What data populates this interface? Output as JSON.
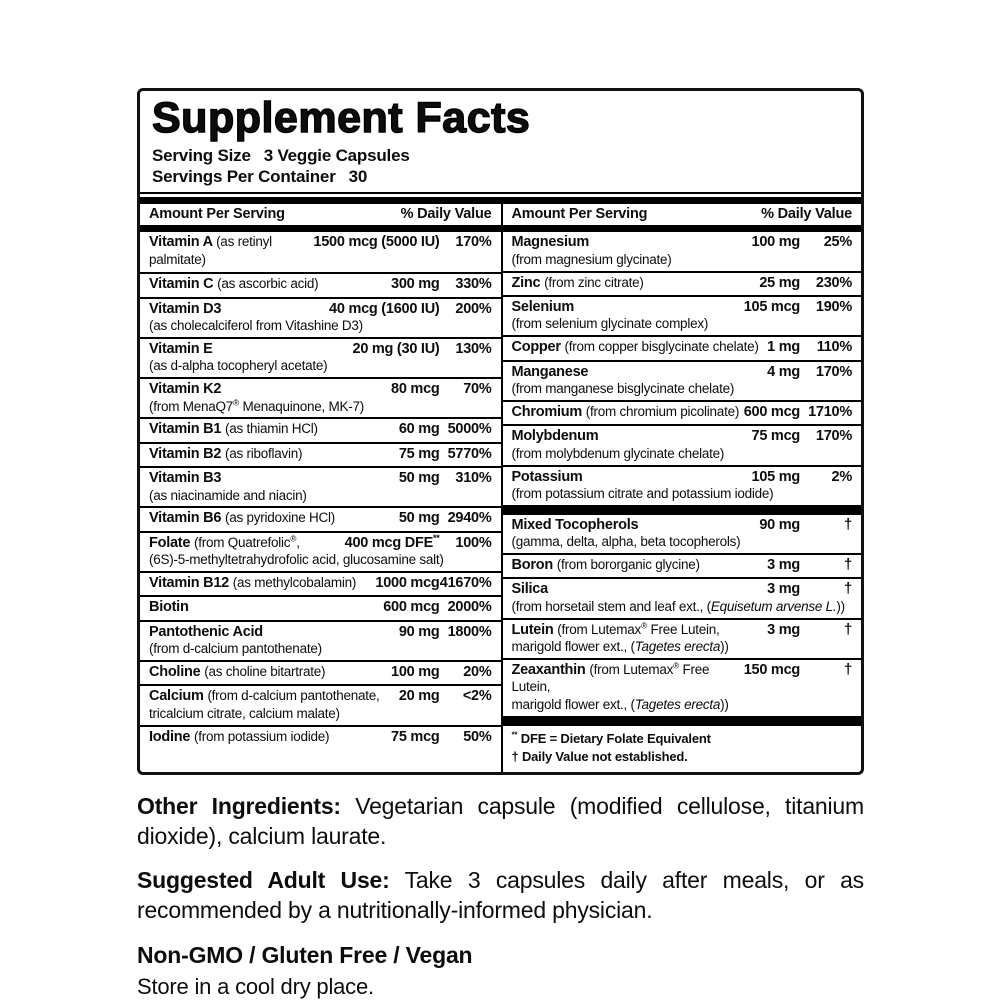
{
  "label": {
    "title": "Supplement Facts",
    "serving_size_label": "Serving Size",
    "serving_size_value": "3 Veggie Capsules",
    "servings_per_container_label": "Servings Per Container",
    "servings_per_container_value": "30",
    "column_header_amount": "Amount Per Serving",
    "column_header_dv": "% Daily Value"
  },
  "table": {
    "left_rows": [
      {
        "name": "Vitamin A",
        "detail": "(as retinyl palmitate)",
        "sub": "",
        "amount": "1500 mcg (5000 IU)",
        "dv": "170%"
      },
      {
        "name": "Vitamin C",
        "detail": "(as ascorbic acid)",
        "sub": "",
        "amount": "300 mg",
        "dv": "330%"
      },
      {
        "name": "Vitamin D3",
        "detail": "",
        "sub": "(as cholecalciferol from Vitashine D3)",
        "amount": "40 mcg (1600 IU)",
        "dv": "200%"
      },
      {
        "name": "Vitamin E",
        "detail": "",
        "sub": "(as d-alpha tocopheryl acetate)",
        "amount": "20 mg (30 IU)",
        "dv": "130%"
      },
      {
        "name": "Vitamin K2",
        "detail": "",
        "sub": "(from MenaQ7® Menaquinone, MK-7)",
        "amount": "80 mcg",
        "dv": "70%"
      },
      {
        "name": "Vitamin B1",
        "detail": "(as thiamin HCl)",
        "sub": "",
        "amount": "60 mg",
        "dv": "5000%"
      },
      {
        "name": "Vitamin B2",
        "detail": "(as riboflavin)",
        "sub": "",
        "amount": "75 mg",
        "dv": "5770%"
      },
      {
        "name": "Vitamin B3",
        "detail": "",
        "sub": "(as niacinamide and niacin)",
        "amount": "50 mg",
        "dv": "310%"
      },
      {
        "name": "Vitamin B6",
        "detail": "(as pyridoxine HCl)",
        "sub": "",
        "amount": "50 mg",
        "dv": "2940%"
      },
      {
        "name": "Folate",
        "detail": "(from Quatrefolic®,",
        "sub": "(6S)-5-methyltetrahydrofolic acid, glucosamine salt)",
        "amount": "400 mcg DFE**",
        "dv": "100%"
      },
      {
        "name": "Vitamin B12",
        "detail": "(as methylcobalamin)",
        "sub": "",
        "amount": "1000 mcg",
        "dv": "41670%"
      },
      {
        "name": "Biotin",
        "detail": "",
        "sub": "",
        "amount": "600 mcg",
        "dv": "2000%"
      },
      {
        "name": "Pantothenic Acid",
        "detail": "",
        "sub": "(from d-calcium pantothenate)",
        "amount": "90 mg",
        "dv": "1800%"
      },
      {
        "name": "Choline",
        "detail": "(as choline bitartrate)",
        "sub": "",
        "amount": "100 mg",
        "dv": "20%"
      },
      {
        "name": "Calcium",
        "detail": "(from d-calcium pantothenate,",
        "sub": "tricalcium citrate, calcium malate)",
        "amount": "20 mg",
        "dv": "<2%"
      },
      {
        "name": "Iodine",
        "detail": "(from potassium iodide)",
        "sub": "",
        "amount": "75 mcg",
        "dv": "50%"
      }
    ],
    "right_rows_minerals": [
      {
        "name": "Magnesium",
        "detail": "",
        "sub": "(from magnesium glycinate)",
        "amount": "100 mg",
        "dv": "25%"
      },
      {
        "name": "Zinc",
        "detail": "(from zinc citrate)",
        "sub": "",
        "amount": "25 mg",
        "dv": "230%"
      },
      {
        "name": "Selenium",
        "detail": "",
        "sub": "(from selenium glycinate complex)",
        "amount": "105 mcg",
        "dv": "190%"
      },
      {
        "name": "Copper",
        "detail": "(from copper bisglycinate chelate)",
        "sub": "",
        "amount": "1 mg",
        "dv": "110%"
      },
      {
        "name": "Manganese",
        "detail": "",
        "sub": "(from manganese bisglycinate chelate)",
        "amount": "4 mg",
        "dv": "170%"
      },
      {
        "name": "Chromium",
        "detail": "(from chromium picolinate)",
        "sub": "",
        "amount": "600 mcg",
        "dv": "1710%"
      },
      {
        "name": "Molybdenum",
        "detail": "",
        "sub": "(from molybdenum glycinate chelate)",
        "amount": "75 mcg",
        "dv": "170%"
      },
      {
        "name": "Potassium",
        "detail": "",
        "sub": "(from potassium citrate and potassium iodide)",
        "amount": "105 mg",
        "dv": "2%"
      }
    ],
    "right_rows_other": [
      {
        "name": "Mixed Tocopherols",
        "detail": "",
        "sub": "(gamma, delta, alpha, beta tocopherols)",
        "amount": "90 mg",
        "dv": "†"
      },
      {
        "name": "Boron",
        "detail": "(from bororganic glycine)",
        "sub": "",
        "amount": "3 mg",
        "dv": "†"
      },
      {
        "name": "Silica",
        "detail": "",
        "sub": [
          {
            "t": "(from horsetail stem and leaf ext., (",
            "i": false
          },
          {
            "t": "Equisetum arvense L.",
            "i": true
          },
          {
            "t": "))",
            "i": false
          }
        ],
        "amount": "3 mg",
        "dv": "†"
      },
      {
        "name": "Lutein",
        "detail": "(from Lutemax® Free Lutein,",
        "sub": [
          {
            "t": "marigold flower ext., (",
            "i": false
          },
          {
            "t": "Tagetes erecta",
            "i": true
          },
          {
            "t": "))",
            "i": false
          }
        ],
        "amount": "3 mg",
        "dv": "†"
      },
      {
        "name": "Zeaxanthin",
        "detail": "(from Lutemax® Free Lutein,",
        "sub": [
          {
            "t": "marigold flower ext., (",
            "i": false
          },
          {
            "t": "Tagetes erecta",
            "i": true
          },
          {
            "t": "))",
            "i": false
          }
        ],
        "amount": "150 mcg",
        "dv": "†"
      }
    ],
    "footnotes": [
      "** DFE = Dietary Folate Equivalent",
      "† Daily Value not established."
    ]
  },
  "bottom": {
    "other_ingredients_label": "Other Ingredients:",
    "other_ingredients_text": "Vegetarian capsule (modified cellulose, titanium dioxide), calcium laurate.",
    "suggested_use_label": "Suggested Adult Use:",
    "suggested_use_text": "Take 3 capsules daily after meals, or as recommended by a nutritionally-informed physician.",
    "claims": "Non-GMO / Gluten Free / Vegan",
    "storage": "Store in a cool dry place."
  },
  "colors": {
    "text": "#0d0d0d",
    "background": "#ffffff",
    "rule": "#000000"
  }
}
